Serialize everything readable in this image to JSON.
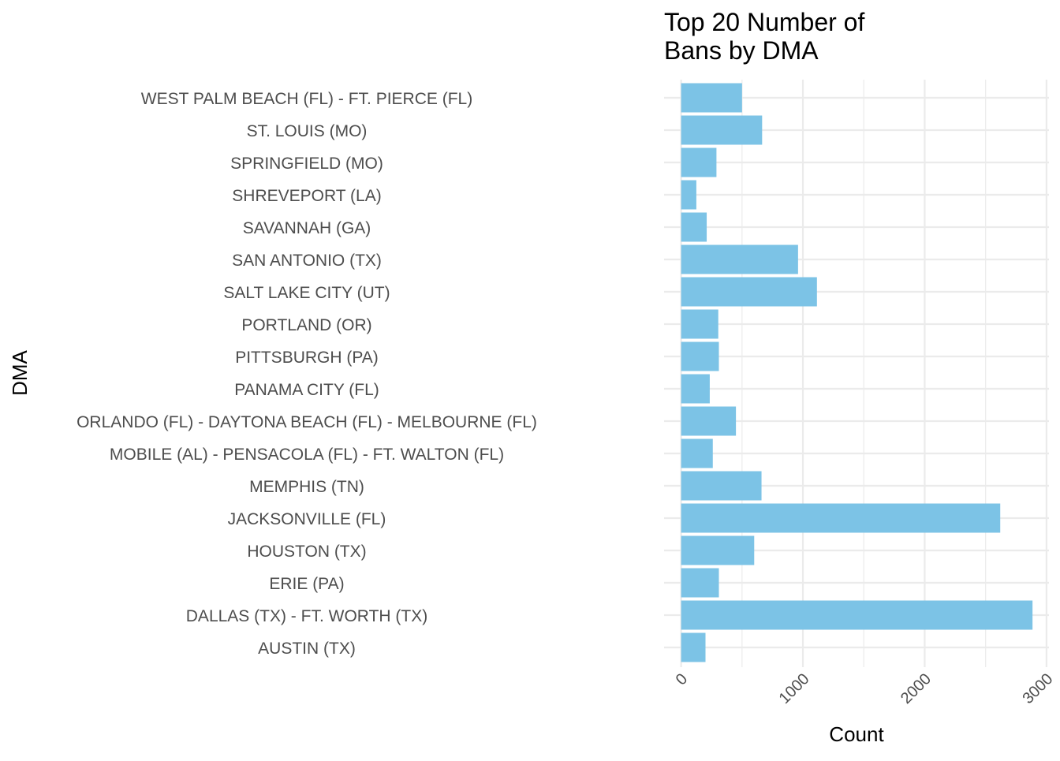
{
  "chart_data": {
    "type": "bar",
    "orientation": "horizontal",
    "title": "Top 20 Number of\nBans by DMA",
    "xlabel": "Count",
    "ylabel": "DMA",
    "categories": [
      "WEST PALM BEACH (FL) - FT. PIERCE (FL)",
      "ST. LOUIS (MO)",
      "SPRINGFIELD (MO)",
      "SHREVEPORT (LA)",
      "SAVANNAH (GA)",
      "SAN ANTONIO (TX)",
      "SALT LAKE CITY (UT)",
      "PORTLAND (OR)",
      "PITTSBURGH (PA)",
      "PANAMA CITY (FL)",
      "ORLANDO (FL) - DAYTONA BEACH (FL) - MELBOURNE (FL)",
      "MOBILE (AL) - PENSACOLA (FL) - FT. WALTON (FL)",
      "MEMPHIS (TN)",
      "JACKSONVILLE (FL)",
      "HOUSTON (TX)",
      "ERIE (PA)",
      "DALLAS (TX) - FT. WORTH (TX)",
      "AUSTIN (TX)"
    ],
    "values": [
      500,
      665,
      290,
      125,
      210,
      960,
      1115,
      305,
      310,
      235,
      450,
      260,
      660,
      2620,
      600,
      310,
      2885,
      200
    ],
    "xticks": [
      0,
      1000,
      2000,
      3000
    ],
    "xlim": [
      -140,
      3020
    ],
    "grid": true,
    "bar_color": "#7CC3E6",
    "grid_color": "#EBEBEB"
  }
}
